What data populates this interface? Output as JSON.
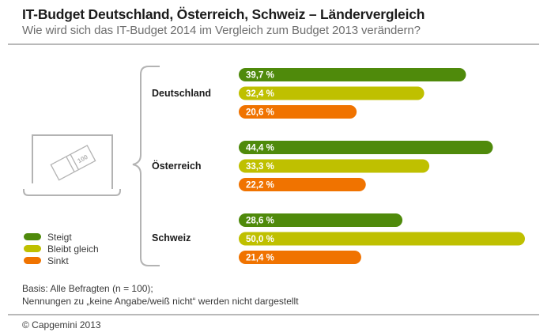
{
  "header": {
    "title": "IT-Budget Deutschland, Österreich, Schweiz – Ländervergleich",
    "subtitle": "Wie wird sich das IT-Budget 2014 im Vergleich zum Budget 2013 verändern?"
  },
  "illustration": {
    "icon": "laptop-with-banknotes-icon",
    "banknote_text": "100"
  },
  "chart_data": {
    "type": "bar",
    "orientation": "horizontal",
    "title": "IT-Budget Deutschland, Österreich, Schweiz – Ländervergleich",
    "subtitle": "Wie wird sich das IT-Budget 2014 im Vergleich zum Budget 2013 verändern?",
    "xlabel": "",
    "ylabel": "",
    "unit": "%",
    "xlim": [
      0,
      50
    ],
    "grid": false,
    "legend_position": "bottom-left",
    "categories": [
      "Deutschland",
      "Österreich",
      "Schweiz"
    ],
    "series": [
      {
        "name": "Steigt",
        "color": "#4f8a0b",
        "values": [
          39.7,
          44.4,
          28.6
        ],
        "labels": [
          "39,7 %",
          "44,4 %",
          "28,6 %"
        ]
      },
      {
        "name": "Bleibt gleich",
        "color": "#bfc000",
        "values": [
          32.4,
          33.3,
          50.0
        ],
        "labels": [
          "32,4 %",
          "33,3 %",
          "50,0 %"
        ]
      },
      {
        "name": "Sinkt",
        "color": "#f07300",
        "values": [
          20.6,
          22.2,
          21.4
        ],
        "labels": [
          "20,6 %",
          "22,2 %",
          "21,4 %"
        ]
      }
    ]
  },
  "countries": [
    "Deutschland",
    "Österreich",
    "Schweiz"
  ],
  "legend": [
    {
      "label": "Steigt",
      "color": "#4f8a0b"
    },
    {
      "label": "Bleibt gleich",
      "color": "#bfc000"
    },
    {
      "label": "Sinkt",
      "color": "#f07300"
    }
  ],
  "notes": {
    "basis": "Basis: Alle Befragten (n = 100);",
    "excluded": "Nennungen zu „keine Angabe/weiß nicht“ werden nicht dargestellt"
  },
  "footer": {
    "copyright": "© Capgemini 2013"
  }
}
